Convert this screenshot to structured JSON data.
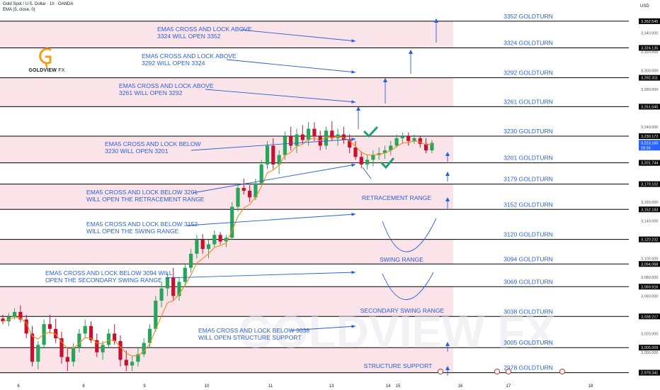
{
  "header": {
    "symbol_line": "Gold Spot / U.S. Dollar · 1h · OANDA",
    "indicator_line": "EMA (5, close, 0)",
    "currency": "USD"
  },
  "logo": {
    "brand": "GOLDVIEW",
    "suffix": "FX",
    "watermark": "GOLDVIEW FX"
  },
  "colors": {
    "zone": "#fbe3ea",
    "level_line": "#000000",
    "annotation": "#2a5fd6",
    "up_candle": "#27a65a",
    "down_candle": "#c8102e",
    "ema": "#f08b1c",
    "check": "#1aa36b"
  },
  "chart_data": {
    "type": "candlestick",
    "title": "Gold Spot / U.S. Dollar · 1h · OANDA",
    "ylim": [
      2975,
      3360
    ],
    "y_ticks": [
      "3,340.000",
      "3,320.000",
      "3,300.000",
      "3,280.000",
      "3,260.000",
      "3,240.000",
      "3,220.000",
      "3,200.000",
      "3,180.000",
      "3,160.000",
      "3,140.000",
      "3,120.000",
      "3,100.000",
      "3,080.000",
      "3,060.000",
      "3,040.000",
      "3,020.000",
      "3,000.000",
      "2,980.000"
    ],
    "x_ticks": [
      "6",
      "8",
      "9",
      "10",
      "11",
      "13",
      "14",
      "15",
      "16",
      "17",
      "18"
    ],
    "price_labels": [
      "3,352.545",
      "3,324.135",
      "3,292.311",
      "3,261.545",
      "3,230.172",
      "3,223.165",
      "3,201.744",
      "3,179.102",
      "3,152.183",
      "3,120.232",
      "3,094.068",
      "3,069.916",
      "3,038.217",
      "3,005.009",
      "2,978.341"
    ],
    "current_price": "3,223.165",
    "countdown": "29:26",
    "goldturn_levels": [
      {
        "label": "3352 GOLDTURN",
        "value": 3352.545
      },
      {
        "label": "3324 GOLDTURN",
        "value": 3324.135
      },
      {
        "label": "3292 GOLDTURN",
        "value": 3292.311
      },
      {
        "label": "3261 GOLDTURN",
        "value": 3261.545
      },
      {
        "label": "3230 GOLDTURN",
        "value": 3230.172
      },
      {
        "label": "3201 GOLDTURN",
        "value": 3201.744
      },
      {
        "label": "3179 GOLDTURN",
        "value": 3179.102
      },
      {
        "label": "3152 GOLDTURN",
        "value": 3152.183
      },
      {
        "label": "3120 GOLDTURN",
        "value": 3120.232
      },
      {
        "label": "3094 GOLDTURN",
        "value": 3094.068
      },
      {
        "label": "3069 GOLDTURN",
        "value": 3069.916
      },
      {
        "label": "3038 GOLDTURN",
        "value": 3038.217
      },
      {
        "label": "3005 GOLDTURN",
        "value": 3005.009
      },
      {
        "label": "2978 GOLDTURN",
        "value": 2978.341
      }
    ],
    "zones": [
      [
        3324.135,
        3352.545
      ],
      [
        3261.545,
        3292.311
      ],
      [
        3201.744,
        3230.172
      ],
      [
        3152.183,
        3179.102
      ],
      [
        3094.068,
        3120.232
      ],
      [
        3038.217,
        3069.916
      ],
      [
        2978.341,
        3005.009
      ]
    ],
    "annotations": [
      {
        "lines": [
          "EMA5 CROSS AND LOCK ABOVE",
          "3324 WILL OPEN 3352"
        ]
      },
      {
        "lines": [
          "EMA5 CROSS AND LOCK ABOVE",
          "3292 WILL OPEN 3324"
        ]
      },
      {
        "lines": [
          "EMA5 CROSS AND LOCK ABOVE",
          "3261 WILL OPEN 3292"
        ]
      },
      {
        "lines": [
          "EMA5 CROSS AND LOCK BELOW",
          "3230 WILL OPEN 3201"
        ]
      },
      {
        "lines": [
          "EMA5 CROSS AND LOCK BELOW 3201",
          "WILL OPEN THE RETRACEMENT RANGE"
        ]
      },
      {
        "lines": [
          "EMA5 CROSS AND LOCK BELOW 3152",
          "WILL OPEN THE SWING RANGE"
        ]
      },
      {
        "lines": [
          "EMA5 CROSS AND LOCK BELOW 3094 WILL",
          "OPEN THE SECONDARY SWING RANGE"
        ]
      },
      {
        "lines": [
          "EMA5 CROSS AND LOCK BELOW 3038",
          "WILL OPEN STRUCTURE SUPPORT"
        ]
      }
    ],
    "range_labels": [
      "RETRACEMENT RANGE",
      "SWING RANGE",
      "SECONDARY SWING RANGE",
      "STRUCTURE SUPPORT"
    ],
    "candles": [
      {
        "x": 1,
        "o": 3036,
        "h": 3040,
        "l": 3030,
        "c": 3033
      },
      {
        "x": 2,
        "o": 3033,
        "h": 3042,
        "l": 3028,
        "c": 3038
      },
      {
        "x": 3,
        "o": 3038,
        "h": 3047,
        "l": 3035,
        "c": 3043
      },
      {
        "x": 4,
        "o": 3043,
        "h": 3050,
        "l": 3032,
        "c": 3035
      },
      {
        "x": 5,
        "o": 3035,
        "h": 3040,
        "l": 3015,
        "c": 3020
      },
      {
        "x": 6,
        "o": 3020,
        "h": 3028,
        "l": 2985,
        "c": 2990
      },
      {
        "x": 7,
        "o": 2990,
        "h": 3012,
        "l": 2982,
        "c": 3008
      },
      {
        "x": 8,
        "o": 3008,
        "h": 3035,
        "l": 3005,
        "c": 3030
      },
      {
        "x": 9,
        "o": 3030,
        "h": 3040,
        "l": 3020,
        "c": 3025
      },
      {
        "x": 10,
        "o": 3025,
        "h": 3036,
        "l": 3010,
        "c": 3015
      },
      {
        "x": 11,
        "o": 3015,
        "h": 3022,
        "l": 2988,
        "c": 2995
      },
      {
        "x": 12,
        "o": 2995,
        "h": 3005,
        "l": 2980,
        "c": 2990
      },
      {
        "x": 13,
        "o": 2990,
        "h": 3010,
        "l": 2985,
        "c": 3005
      },
      {
        "x": 14,
        "o": 3005,
        "h": 3025,
        "l": 3000,
        "c": 3020
      },
      {
        "x": 15,
        "o": 3020,
        "h": 3035,
        "l": 3015,
        "c": 3028
      },
      {
        "x": 16,
        "o": 3028,
        "h": 3033,
        "l": 3010,
        "c": 3013
      },
      {
        "x": 17,
        "o": 3013,
        "h": 3020,
        "l": 2995,
        "c": 3000
      },
      {
        "x": 18,
        "o": 3000,
        "h": 3012,
        "l": 2992,
        "c": 3008
      },
      {
        "x": 19,
        "o": 3008,
        "h": 3025,
        "l": 3005,
        "c": 3020
      },
      {
        "x": 20,
        "o": 3020,
        "h": 3030,
        "l": 3008,
        "c": 3012
      },
      {
        "x": 21,
        "o": 3012,
        "h": 3018,
        "l": 2985,
        "c": 2992
      },
      {
        "x": 22,
        "o": 2992,
        "h": 3002,
        "l": 2980,
        "c": 2986
      },
      {
        "x": 23,
        "o": 2986,
        "h": 2996,
        "l": 2980,
        "c": 2990
      },
      {
        "x": 24,
        "o": 2990,
        "h": 3005,
        "l": 2985,
        "c": 2998
      },
      {
        "x": 25,
        "o": 2998,
        "h": 3015,
        "l": 2995,
        "c": 3010
      },
      {
        "x": 26,
        "o": 3010,
        "h": 3030,
        "l": 3005,
        "c": 3025
      },
      {
        "x": 27,
        "o": 3025,
        "h": 3060,
        "l": 3022,
        "c": 3055
      },
      {
        "x": 28,
        "o": 3055,
        "h": 3075,
        "l": 3048,
        "c": 3068
      },
      {
        "x": 29,
        "o": 3068,
        "h": 3085,
        "l": 3060,
        "c": 3080
      },
      {
        "x": 30,
        "o": 3080,
        "h": 3090,
        "l": 3055,
        "c": 3060
      },
      {
        "x": 31,
        "o": 3060,
        "h": 3080,
        "l": 3055,
        "c": 3075
      },
      {
        "x": 32,
        "o": 3075,
        "h": 3095,
        "l": 3070,
        "c": 3090
      },
      {
        "x": 33,
        "o": 3090,
        "h": 3110,
        "l": 3085,
        "c": 3105
      },
      {
        "x": 34,
        "o": 3105,
        "h": 3125,
        "l": 3100,
        "c": 3120
      },
      {
        "x": 35,
        "o": 3120,
        "h": 3126,
        "l": 3105,
        "c": 3110
      },
      {
        "x": 36,
        "o": 3110,
        "h": 3120,
        "l": 3100,
        "c": 3115
      },
      {
        "x": 37,
        "o": 3115,
        "h": 3130,
        "l": 3112,
        "c": 3125
      },
      {
        "x": 38,
        "o": 3125,
        "h": 3128,
        "l": 3115,
        "c": 3118
      },
      {
        "x": 39,
        "o": 3118,
        "h": 3125,
        "l": 3112,
        "c": 3122
      },
      {
        "x": 40,
        "o": 3122,
        "h": 3160,
        "l": 3120,
        "c": 3155
      },
      {
        "x": 41,
        "o": 3155,
        "h": 3180,
        "l": 3150,
        "c": 3175
      },
      {
        "x": 42,
        "o": 3175,
        "h": 3185,
        "l": 3168,
        "c": 3172
      },
      {
        "x": 43,
        "o": 3172,
        "h": 3178,
        "l": 3160,
        "c": 3165
      },
      {
        "x": 44,
        "o": 3165,
        "h": 3185,
        "l": 3162,
        "c": 3180
      },
      {
        "x": 45,
        "o": 3180,
        "h": 3205,
        "l": 3178,
        "c": 3200
      },
      {
        "x": 46,
        "o": 3200,
        "h": 3225,
        "l": 3195,
        "c": 3220
      },
      {
        "x": 47,
        "o": 3220,
        "h": 3228,
        "l": 3195,
        "c": 3200
      },
      {
        "x": 48,
        "o": 3200,
        "h": 3215,
        "l": 3190,
        "c": 3210
      },
      {
        "x": 49,
        "o": 3210,
        "h": 3235,
        "l": 3205,
        "c": 3230
      },
      {
        "x": 50,
        "o": 3230,
        "h": 3240,
        "l": 3215,
        "c": 3220
      },
      {
        "x": 51,
        "o": 3220,
        "h": 3238,
        "l": 3212,
        "c": 3232
      },
      {
        "x": 52,
        "o": 3232,
        "h": 3242,
        "l": 3222,
        "c": 3226
      },
      {
        "x": 53,
        "o": 3226,
        "h": 3245,
        "l": 3220,
        "c": 3238
      },
      {
        "x": 54,
        "o": 3238,
        "h": 3245,
        "l": 3225,
        "c": 3230
      },
      {
        "x": 55,
        "o": 3230,
        "h": 3236,
        "l": 3215,
        "c": 3220
      },
      {
        "x": 56,
        "o": 3220,
        "h": 3240,
        "l": 3216,
        "c": 3236
      },
      {
        "x": 57,
        "o": 3236,
        "h": 3246,
        "l": 3225,
        "c": 3228
      },
      {
        "x": 58,
        "o": 3228,
        "h": 3238,
        "l": 3220,
        "c": 3232
      },
      {
        "x": 59,
        "o": 3232,
        "h": 3240,
        "l": 3222,
        "c": 3226
      },
      {
        "x": 60,
        "o": 3226,
        "h": 3232,
        "l": 3212,
        "c": 3218
      },
      {
        "x": 61,
        "o": 3218,
        "h": 3225,
        "l": 3205,
        "c": 3208
      },
      {
        "x": 62,
        "o": 3208,
        "h": 3214,
        "l": 3196,
        "c": 3200
      },
      {
        "x": 63,
        "o": 3200,
        "h": 3210,
        "l": 3195,
        "c": 3205
      },
      {
        "x": 64,
        "o": 3205,
        "h": 3215,
        "l": 3198,
        "c": 3210
      },
      {
        "x": 65,
        "o": 3210,
        "h": 3218,
        "l": 3205,
        "c": 3212
      },
      {
        "x": 66,
        "o": 3212,
        "h": 3220,
        "l": 3206,
        "c": 3215
      },
      {
        "x": 67,
        "o": 3215,
        "h": 3225,
        "l": 3210,
        "c": 3220
      },
      {
        "x": 68,
        "o": 3220,
        "h": 3232,
        "l": 3218,
        "c": 3228
      },
      {
        "x": 69,
        "o": 3228,
        "h": 3234,
        "l": 3222,
        "c": 3230
      },
      {
        "x": 70,
        "o": 3230,
        "h": 3234,
        "l": 3220,
        "c": 3225
      },
      {
        "x": 71,
        "o": 3225,
        "h": 3232,
        "l": 3222,
        "c": 3228
      },
      {
        "x": 72,
        "o": 3228,
        "h": 3230,
        "l": 3218,
        "c": 3222
      },
      {
        "x": 73,
        "o": 3222,
        "h": 3228,
        "l": 3212,
        "c": 3215
      },
      {
        "x": 74,
        "o": 3215,
        "h": 3226,
        "l": 3212,
        "c": 3223
      }
    ]
  }
}
